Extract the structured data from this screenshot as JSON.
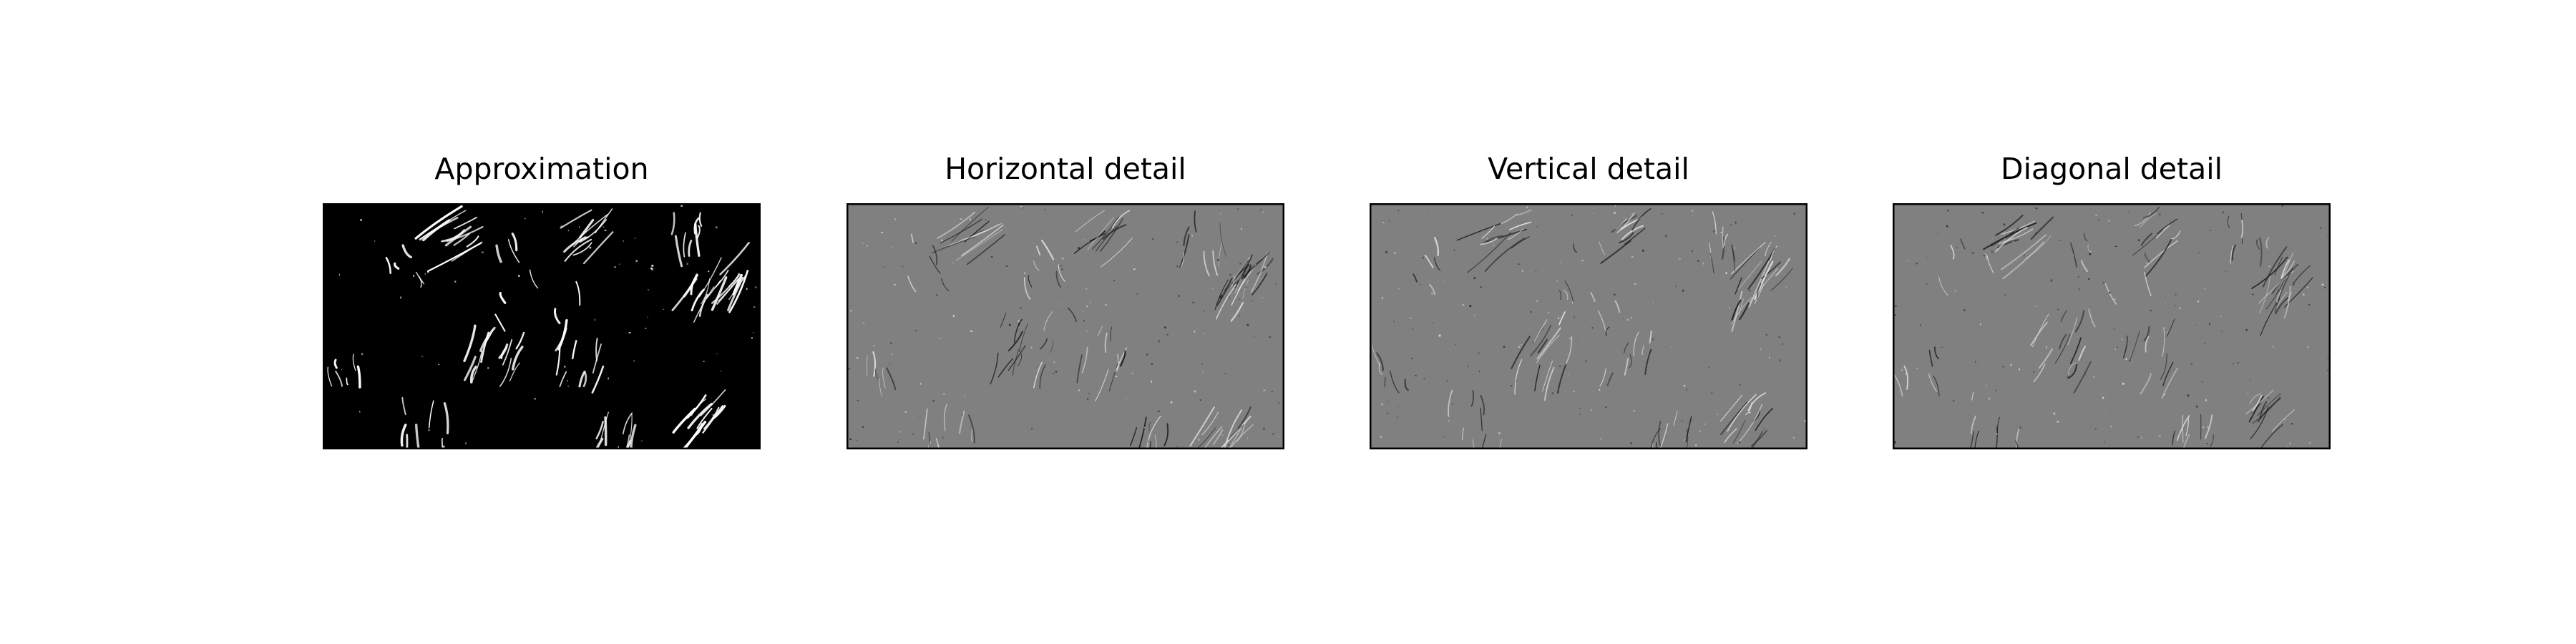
{
  "figure": {
    "background": "#ffffff"
  },
  "panels": [
    {
      "title": "Approximation",
      "background": "#000000",
      "frame_color": "#000000",
      "stroke_color": "#ffffff"
    },
    {
      "title": "Horizontal detail",
      "background": "#808080",
      "frame_color": "#000000",
      "stroke_color": "#e6e6e6"
    },
    {
      "title": "Vertical detail",
      "background": "#808080",
      "frame_color": "#000000",
      "stroke_color": "#e6e6e6"
    },
    {
      "title": "Diagonal detail",
      "background": "#808080",
      "frame_color": "#000000",
      "stroke_color": "#d9d9d9"
    }
  ]
}
